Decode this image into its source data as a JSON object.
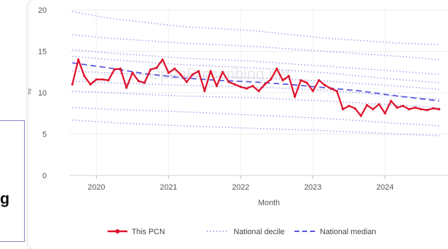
{
  "side_label": "g",
  "watermark": "OpenPrescribing.net",
  "chart_data": {
    "type": "line",
    "xlabel": "Month",
    "ylabel": "%",
    "ylim": [
      0,
      20
    ],
    "yticks": [
      0,
      5,
      10,
      15,
      20
    ],
    "xticks": [
      "2020",
      "2021",
      "2022",
      "2023",
      "2024"
    ],
    "xlim": [
      "2019-09",
      "2024-12"
    ],
    "grid": true,
    "legend_position": "bottom",
    "colors": {
      "pcn": "#e0102a",
      "decile": "#a9a6e8",
      "median": "#5a57e0"
    },
    "series": [
      {
        "name": "This PCN",
        "style": "solid",
        "x": [
          "2019-09",
          "2019-10",
          "2019-11",
          "2019-12",
          "2020-01",
          "2020-02",
          "2020-03",
          "2020-04",
          "2020-05",
          "2020-06",
          "2020-07",
          "2020-08",
          "2020-09",
          "2020-10",
          "2020-11",
          "2020-12",
          "2021-01",
          "2021-02",
          "2021-03",
          "2021-04",
          "2021-05",
          "2021-06",
          "2021-07",
          "2021-08",
          "2021-09",
          "2021-10",
          "2021-11",
          "2021-12",
          "2022-01",
          "2022-02",
          "2022-03",
          "2022-04",
          "2022-05",
          "2022-06",
          "2022-07",
          "2022-08",
          "2022-09",
          "2022-10",
          "2022-11",
          "2022-12",
          "2023-01",
          "2023-02",
          "2023-03",
          "2023-04",
          "2023-05",
          "2023-06",
          "2023-07",
          "2023-08",
          "2023-09",
          "2023-10",
          "2023-11",
          "2023-12",
          "2024-01",
          "2024-02",
          "2024-03",
          "2024-04",
          "2024-05",
          "2024-06",
          "2024-07",
          "2024-08",
          "2024-09",
          "2024-10"
        ],
        "values": [
          11.0,
          14.0,
          12.0,
          11.0,
          11.6,
          11.6,
          11.5,
          12.8,
          12.9,
          10.6,
          12.4,
          11.4,
          11.2,
          12.8,
          13.0,
          14.0,
          12.4,
          12.9,
          12.2,
          11.3,
          12.2,
          12.6,
          10.2,
          12.6,
          10.8,
          12.5,
          11.3,
          11.0,
          10.7,
          10.5,
          10.8,
          10.2,
          11.0,
          11.6,
          12.9,
          11.5,
          12.0,
          9.5,
          11.5,
          11.2,
          10.2,
          11.5,
          10.9,
          10.5,
          10.2,
          8.0,
          8.4,
          8.1,
          7.2,
          8.5,
          8.0,
          8.6,
          7.5,
          9.0,
          8.2,
          8.4,
          8.0,
          8.2,
          8.0,
          7.9,
          8.1,
          8.0
        ]
      },
      {
        "name": "National median",
        "style": "dashed",
        "x": [
          "2019-09",
          "2020-03",
          "2020-09",
          "2021-03",
          "2021-09",
          "2022-03",
          "2022-09",
          "2023-03",
          "2023-09",
          "2024-03",
          "2024-10"
        ],
        "values": [
          13.6,
          13.0,
          12.3,
          11.8,
          11.5,
          11.3,
          11.0,
          10.6,
          10.2,
          9.6,
          9.0
        ]
      },
      {
        "name": "National decile",
        "style": "dotted",
        "deciles": [
          {
            "x": [
              "2019-09",
              "2020-03",
              "2021-03",
              "2022-03",
              "2023-03",
              "2024-03",
              "2024-10"
            ],
            "values": [
              19.8,
              19.0,
              18.0,
              17.5,
              16.6,
              16.0,
              15.8
            ]
          },
          {
            "x": [
              "2019-09",
              "2020-03",
              "2021-03",
              "2022-03",
              "2023-03",
              "2024-03",
              "2024-10"
            ],
            "values": [
              17.0,
              16.6,
              16.0,
              15.6,
              15.0,
              14.4,
              14.0
            ]
          },
          {
            "x": [
              "2019-09",
              "2020-03",
              "2021-03",
              "2022-03",
              "2023-03",
              "2024-03",
              "2024-10"
            ],
            "values": [
              15.2,
              14.8,
              14.2,
              13.8,
              13.2,
              12.6,
              12.2
            ]
          },
          {
            "x": [
              "2019-09",
              "2020-03",
              "2021-03",
              "2022-03",
              "2023-03",
              "2024-03",
              "2024-10"
            ],
            "values": [
              14.4,
              14.0,
              13.4,
              13.0,
              12.4,
              11.6,
              11.2
            ]
          },
          {
            "x": [
              "2019-09",
              "2020-03",
              "2021-03",
              "2022-03",
              "2023-03",
              "2024-03",
              "2024-10"
            ],
            "values": [
              12.6,
              12.4,
              12.0,
              11.8,
              11.4,
              10.8,
              10.4
            ]
          },
          {
            "x": [
              "2019-09",
              "2020-03",
              "2021-03",
              "2022-03",
              "2023-03",
              "2024-03",
              "2024-10"
            ],
            "values": [
              11.4,
              11.2,
              10.9,
              10.7,
              10.3,
              9.6,
              9.2
            ]
          },
          {
            "x": [
              "2019-09",
              "2020-03",
              "2021-03",
              "2022-03",
              "2023-03",
              "2024-03",
              "2024-10"
            ],
            "values": [
              10.2,
              10.0,
              9.6,
              9.4,
              9.0,
              8.5,
              8.2
            ]
          },
          {
            "x": [
              "2019-09",
              "2020-03",
              "2021-03",
              "2022-03",
              "2023-03",
              "2024-03",
              "2024-10"
            ],
            "values": [
              8.2,
              8.0,
              7.7,
              7.3,
              6.9,
              6.3,
              6.0
            ]
          },
          {
            "x": [
              "2019-09",
              "2020-03",
              "2021-03",
              "2022-03",
              "2023-03",
              "2024-03",
              "2024-10"
            ],
            "values": [
              6.7,
              6.4,
              6.0,
              5.7,
              5.4,
              5.0,
              4.8
            ]
          }
        ]
      }
    ]
  }
}
